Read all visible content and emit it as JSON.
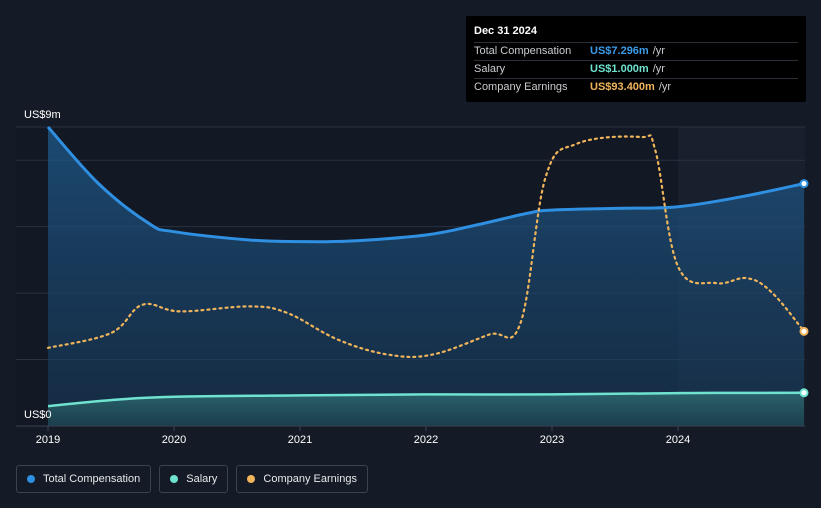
{
  "tooltip": {
    "date": "Dec 31 2024",
    "rows": [
      {
        "label": "Total Compensation",
        "value": "US$7.296m",
        "unit": "/yr",
        "color": "#3b9be8"
      },
      {
        "label": "Salary",
        "value": "US$1.000m",
        "unit": "/yr",
        "color": "#6fe3d0"
      },
      {
        "label": "Company Earnings",
        "value": "US$93.400m",
        "unit": "/yr",
        "color": "#f0b45a"
      }
    ]
  },
  "legend": [
    {
      "label": "Total Compensation",
      "color": "#2f8fe0"
    },
    {
      "label": "Salary",
      "color": "#6fe3d0"
    },
    {
      "label": "Company Earnings",
      "color": "#f0b45a"
    }
  ],
  "chart_data": {
    "type": "line",
    "y_top_label": "US$9m",
    "y_bottom_label": "US$0",
    "ylim": [
      0,
      9
    ],
    "xlim": [
      2019.0,
      2025.0
    ],
    "x_ticks": [
      "2019",
      "2020",
      "2021",
      "2022",
      "2023",
      "2024"
    ],
    "x_tick_values": [
      2019,
      2020,
      2021,
      2022,
      2023,
      2024
    ],
    "forecast_start": 2024.0,
    "series": [
      {
        "name": "Total Compensation",
        "color": "#2f8fe0",
        "style": "solid",
        "x": [
          2019.0,
          2019.4,
          2019.8,
          2020.0,
          2020.6,
          2021.0,
          2021.4,
          2022.0,
          2022.4,
          2022.8,
          2023.0,
          2023.5,
          2024.0,
          2024.5,
          2025.0
        ],
        "y": [
          9.0,
          7.3,
          6.1,
          5.85,
          5.6,
          5.55,
          5.57,
          5.75,
          6.05,
          6.4,
          6.5,
          6.55,
          6.6,
          6.9,
          7.296
        ]
      },
      {
        "name": "Salary",
        "color": "#6fe3d0",
        "style": "solid",
        "x": [
          2019.0,
          2019.5,
          2020.0,
          2021.0,
          2022.0,
          2023.0,
          2024.0,
          2025.0
        ],
        "y": [
          0.6,
          0.78,
          0.88,
          0.92,
          0.95,
          0.95,
          0.99,
          1.0
        ]
      },
      {
        "name": "Company Earnings",
        "color": "#f0b45a",
        "style": "dotted",
        "x": [
          2019.0,
          2019.5,
          2019.75,
          2020.05,
          2020.6,
          2020.9,
          2021.3,
          2021.7,
          2022.05,
          2022.5,
          2022.75,
          2022.95,
          2023.2,
          2023.7,
          2023.82,
          2024.0,
          2024.3,
          2024.55,
          2024.75,
          2025.0
        ],
        "y": [
          2.35,
          2.8,
          3.65,
          3.45,
          3.6,
          3.4,
          2.6,
          2.15,
          2.15,
          2.75,
          3.1,
          7.5,
          8.5,
          8.7,
          8.3,
          4.8,
          4.3,
          4.45,
          4.0,
          2.85
        ]
      }
    ]
  }
}
